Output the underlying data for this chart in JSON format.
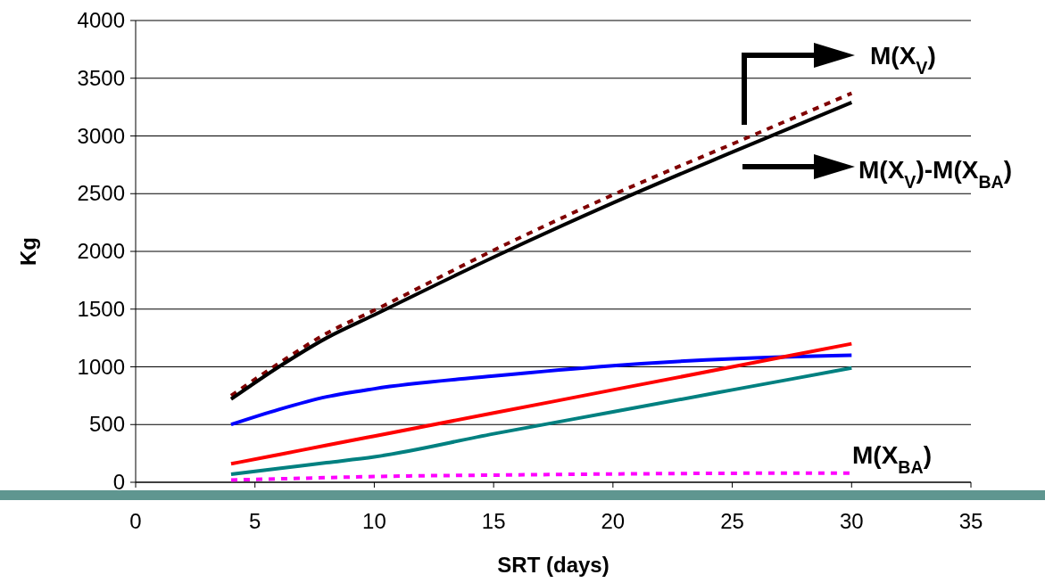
{
  "chart_data": {
    "type": "line",
    "xlabel": "SRT (days)",
    "ylabel": "Kg",
    "xlim": [
      0,
      35
    ],
    "xticks": [
      0,
      5,
      10,
      15,
      20,
      25,
      30,
      35
    ],
    "ylim": [
      0,
      4000
    ],
    "yticks": [
      0,
      500,
      1000,
      1500,
      2000,
      2500,
      3000,
      3500,
      4000
    ],
    "grid": "y",
    "marker": "none",
    "x": [
      4,
      6,
      8,
      10,
      15,
      20,
      25,
      30
    ],
    "series": [
      {
        "color": "#800000",
        "line_style": "dotted",
        "values": [
          750,
          1030,
          1290,
          1490,
          2010,
          2490,
          2930,
          3370
        ]
      },
      {
        "color": "#000000",
        "line_style": "solid",
        "values": [
          720,
          1000,
          1250,
          1450,
          1950,
          2420,
          2860,
          3290
        ]
      },
      {
        "color": "#0000ff",
        "line_style": "solid",
        "values": [
          500,
          630,
          740,
          810,
          920,
          1010,
          1070,
          1100
        ]
      },
      {
        "color": "#ff0000",
        "line_style": "solid",
        "values": [
          160,
          240,
          320,
          400,
          600,
          800,
          1000,
          1200
        ]
      },
      {
        "color": "#008080",
        "line_style": "solid",
        "values": [
          70,
          120,
          170,
          220,
          420,
          610,
          800,
          990
        ]
      },
      {
        "color": "#ff00ff",
        "line_style": "dotted",
        "values": [
          20,
          30,
          40,
          50,
          62,
          72,
          78,
          80
        ]
      }
    ],
    "annotations": [
      "M(X$_{V}$)",
      "M(X$_{V}$)-M(X$_{BA}$)",
      "M(X$_{BA}$)"
    ]
  }
}
